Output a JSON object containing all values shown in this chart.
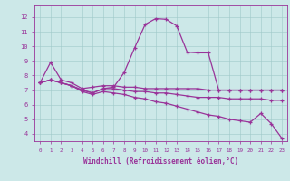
{
  "xlabel": "Windchill (Refroidissement éolien,°C)",
  "bg_color": "#cce8e8",
  "line_color": "#993399",
  "ylim": [
    3.5,
    12.8
  ],
  "xlim": [
    -0.5,
    23.5
  ],
  "yticks": [
    4,
    5,
    6,
    7,
    8,
    9,
    10,
    11,
    12
  ],
  "xticks": [
    0,
    1,
    2,
    3,
    4,
    5,
    6,
    7,
    8,
    9,
    10,
    11,
    12,
    13,
    14,
    15,
    16,
    17,
    18,
    19,
    20,
    21,
    22,
    23
  ],
  "lines": [
    {
      "x": [
        0,
        1,
        2,
        3,
        4,
        5,
        6,
        7,
        8,
        9,
        10,
        11,
        12,
        13,
        14,
        15,
        16,
        17,
        18,
        19,
        20,
        21,
        22,
        23
      ],
      "y": [
        7.5,
        8.9,
        7.7,
        7.5,
        7.1,
        7.2,
        7.3,
        7.3,
        7.2,
        7.2,
        7.1,
        7.1,
        7.1,
        7.1,
        7.1,
        7.1,
        7.0,
        7.0,
        7.0,
        7.0,
        7.0,
        7.0,
        7.0,
        7.0
      ]
    },
    {
      "x": [
        0,
        1,
        2,
        3,
        4,
        5,
        6,
        7,
        8,
        9,
        10,
        11,
        12,
        13,
        14,
        15,
        16,
        17,
        18,
        19,
        20,
        21,
        22,
        23
      ],
      "y": [
        7.5,
        7.7,
        7.5,
        7.3,
        7.0,
        6.8,
        7.1,
        7.1,
        7.0,
        6.9,
        6.9,
        6.8,
        6.8,
        6.7,
        6.6,
        6.5,
        6.5,
        6.5,
        6.4,
        6.4,
        6.4,
        6.4,
        6.3,
        6.3
      ]
    },
    {
      "x": [
        0,
        1,
        2,
        3,
        4,
        5,
        6,
        7,
        8,
        9,
        10,
        11,
        12,
        13,
        14,
        15,
        16,
        17,
        18,
        19,
        20,
        21,
        22,
        23
      ],
      "y": [
        7.5,
        7.7,
        7.5,
        7.3,
        7.0,
        6.8,
        7.1,
        7.2,
        8.2,
        9.9,
        11.5,
        11.9,
        11.85,
        11.4,
        9.6,
        9.55,
        9.55,
        7.0,
        7.0,
        7.0,
        7.0,
        7.0,
        7.0,
        7.0
      ]
    },
    {
      "x": [
        0,
        1,
        2,
        3,
        4,
        5,
        6,
        7,
        8,
        9,
        10,
        11,
        12,
        13,
        14,
        15,
        16,
        17,
        18,
        19,
        20,
        21,
        22,
        23
      ],
      "y": [
        7.5,
        7.7,
        7.5,
        7.3,
        6.9,
        6.7,
        6.9,
        6.8,
        6.7,
        6.5,
        6.4,
        6.2,
        6.1,
        5.9,
        5.7,
        5.5,
        5.3,
        5.2,
        5.0,
        4.9,
        4.8,
        5.4,
        4.7,
        3.7
      ]
    }
  ]
}
